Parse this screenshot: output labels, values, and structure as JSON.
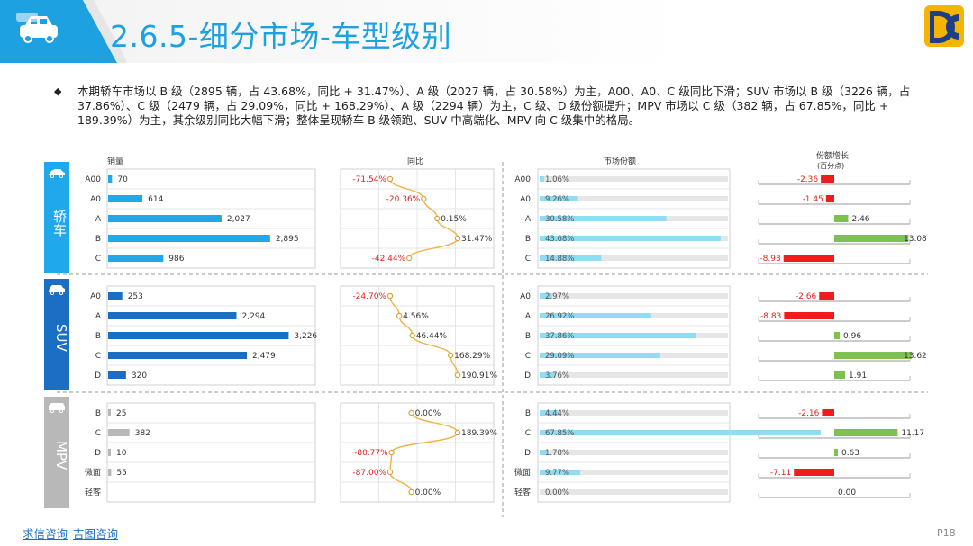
{
  "header": {
    "title": "2.6.5-细分市场-车型级别",
    "logo": "DC"
  },
  "summary": "本期轿车市场以 B 级（2895 辆，占 43.68%，同比 + 31.47%）、A 级（2027 辆，占 30.58%）为主，A00、A0、C 级同比下滑；SUV 市场以 B 级（3226 辆，占 37.86%）、C 级（2479 辆，占 29.09%，同比 + 168.29%）、A 级（2294 辆）为主，C 级、D 级份额提升；MPV 市场以 C 级（382 辆，占 67.85%，同比 + 189.39%）为主，其余级别同比大幅下滑；整体呈现轿车 B 级领跑、SUV 中高端化、MPV 向 C 级集中的格局。",
  "segments": {
    "car": "轿车",
    "suv": "SUV",
    "mpv": "MPV"
  },
  "chart_data": {
    "type": "bar",
    "column_titles": {
      "sales": "销量",
      "yoy": "同比",
      "share": "市场份额",
      "share_change": "份额增长",
      "share_change_unit": "(百分点)"
    },
    "groups": [
      {
        "name": "轿车",
        "color": "#1fa8ec",
        "categories": [
          "A00",
          "A0",
          "A",
          "B",
          "C"
        ],
        "sales": [
          70,
          614,
          2027,
          2895,
          986
        ],
        "sales_labels": [
          "70",
          "614",
          "2,027",
          "2,895",
          "986"
        ],
        "yoy": [
          -71.54,
          -20.36,
          0.15,
          31.47,
          -42.44
        ],
        "yoy_labels": [
          "-71.54%",
          "-20.36%",
          "0.15%",
          "31.47%",
          "-42.44%"
        ],
        "share": [
          1.06,
          9.26,
          30.58,
          43.68,
          14.88
        ],
        "share_labels": [
          "1.06%",
          "9.26%",
          "30.58%",
          "43.68%",
          "14.88%"
        ],
        "share_change": [
          -2.36,
          -1.45,
          2.46,
          13.08,
          -8.93
        ],
        "share_change_labels": [
          "-2.36",
          "-1.45",
          "2.46",
          "13.08",
          "-8.93"
        ]
      },
      {
        "name": "SUV",
        "color": "#1a6fc4",
        "categories": [
          "A0",
          "A",
          "B",
          "C",
          "D"
        ],
        "sales": [
          253,
          2294,
          3226,
          2479,
          320
        ],
        "sales_labels": [
          "253",
          "2,294",
          "3,226",
          "2,479",
          "320"
        ],
        "yoy": [
          -24.7,
          4.56,
          46.44,
          168.29,
          190.91
        ],
        "yoy_labels": [
          "-24.70%",
          "4.56%",
          "46.44%",
          "168.29%",
          "190.91%"
        ],
        "share": [
          2.97,
          26.92,
          37.86,
          29.09,
          3.76
        ],
        "share_labels": [
          "2.97%",
          "26.92%",
          "37.86%",
          "29.09%",
          "3.76%"
        ],
        "share_change": [
          -2.66,
          -8.83,
          0.96,
          13.62,
          1.91
        ],
        "share_change_labels": [
          "-2.66",
          "-8.83",
          "0.96",
          "13.62",
          "1.91"
        ]
      },
      {
        "name": "MPV",
        "color": "#b8b8b8",
        "categories": [
          "B",
          "C",
          "D",
          "微面",
          "轻客"
        ],
        "sales": [
          25,
          382,
          10,
          55,
          0
        ],
        "sales_labels": [
          "25",
          "382",
          "10",
          "55",
          ""
        ],
        "yoy": [
          0.0,
          189.39,
          -80.77,
          -87.0,
          0.0
        ],
        "yoy_labels": [
          "0.00%",
          "189.39%",
          "-80.77%",
          "-87.00%",
          "0.00%"
        ],
        "share": [
          4.44,
          67.85,
          1.78,
          9.77,
          0.0
        ],
        "share_labels": [
          "4.44%",
          "67.85%",
          "1.78%",
          "9.77%",
          "0.00%"
        ],
        "share_change": [
          -2.16,
          11.17,
          0.63,
          -7.11,
          0.0
        ],
        "share_change_labels": [
          "-2.16",
          "11.17",
          "0.63",
          "-7.11",
          "0.00"
        ]
      }
    ]
  },
  "footer": {
    "link1": "求信咨询",
    "link2": "吉图咨询",
    "page": "P18"
  }
}
